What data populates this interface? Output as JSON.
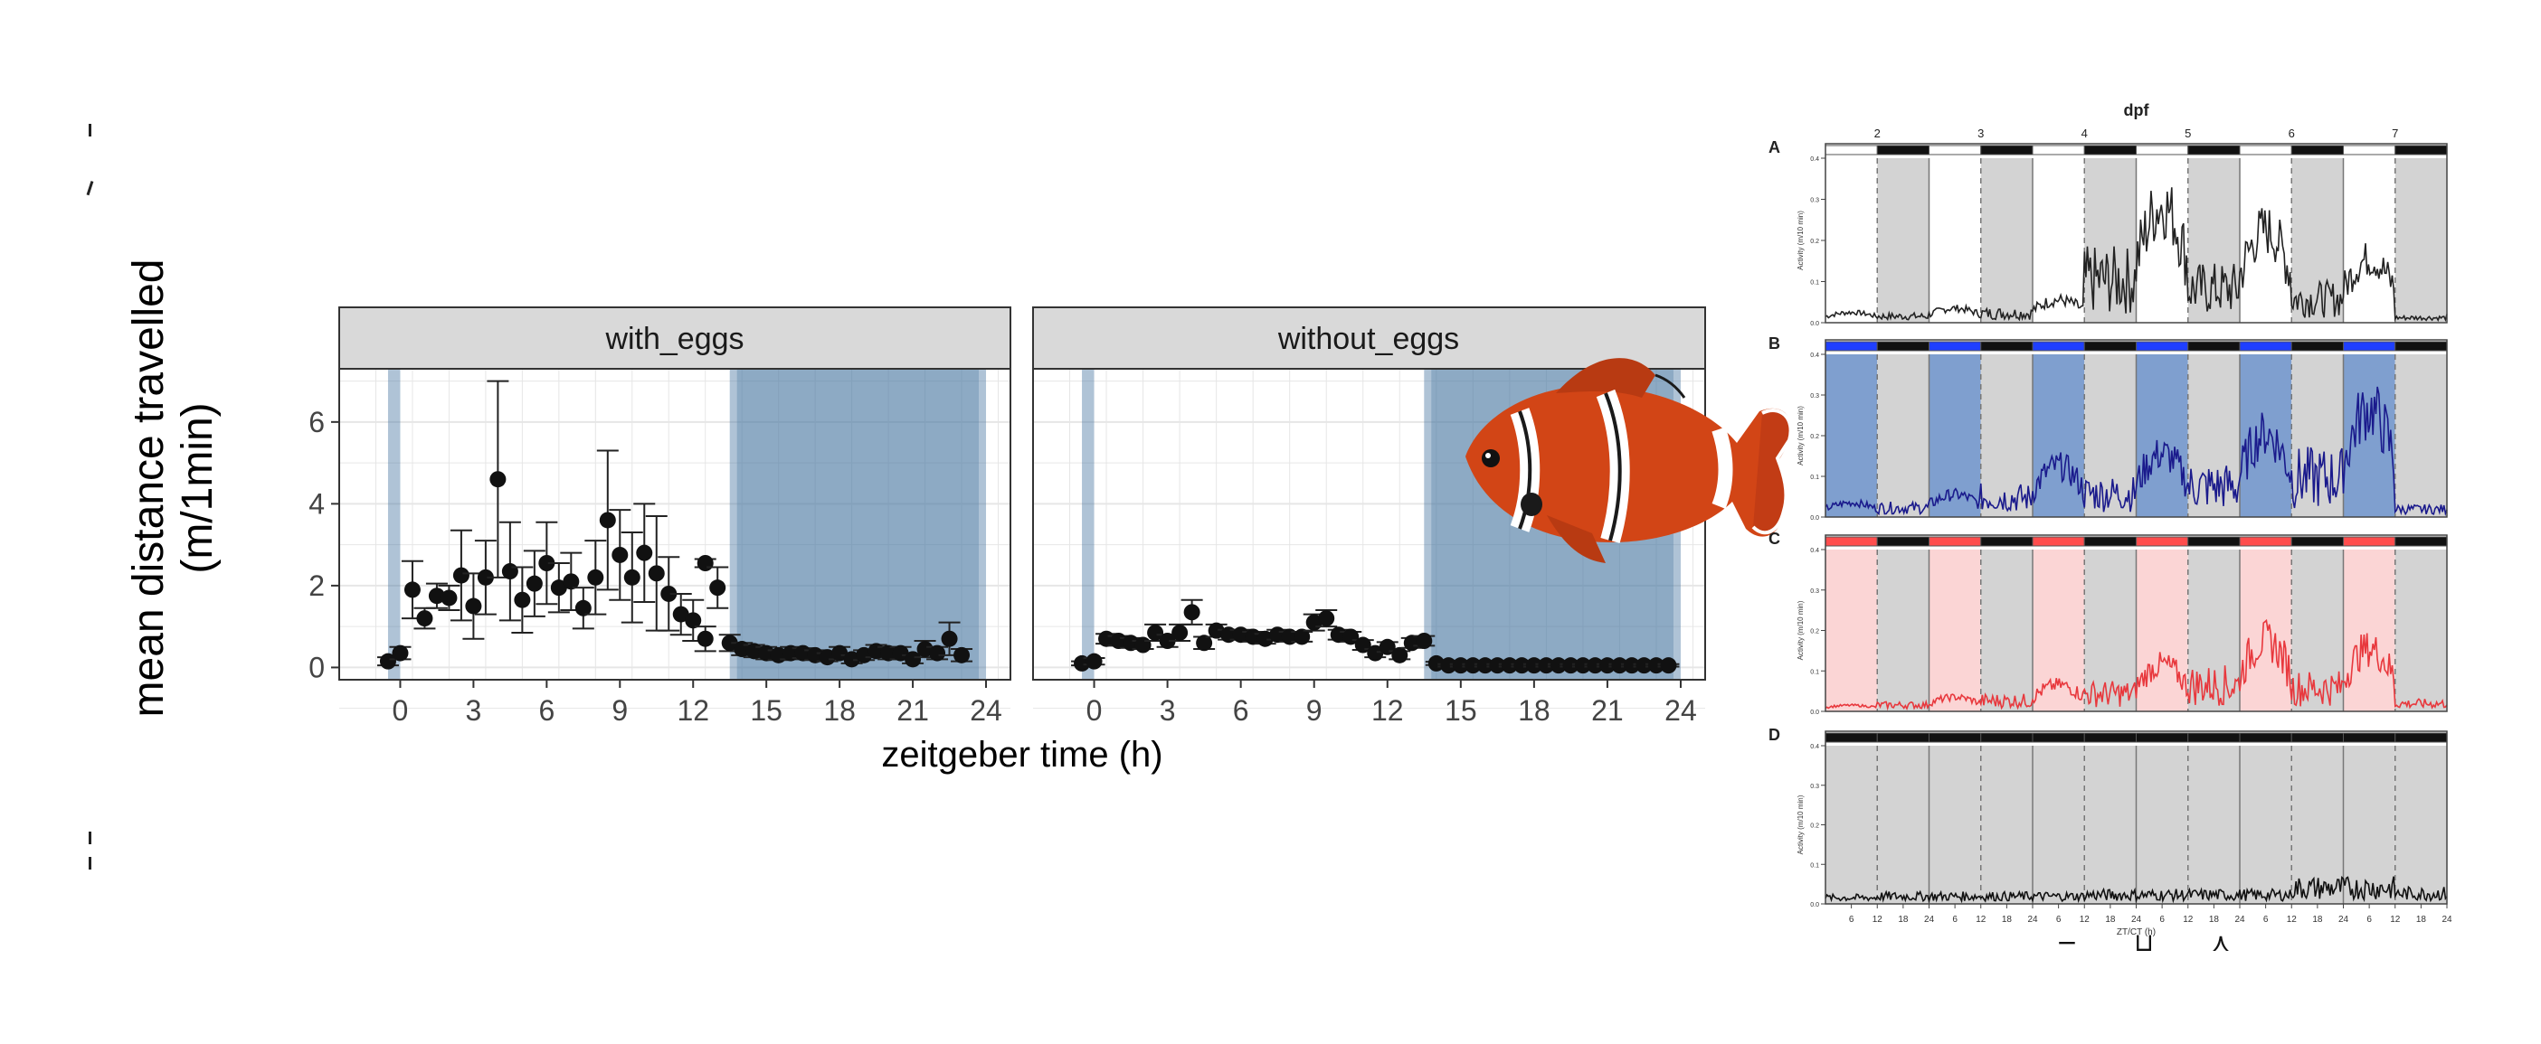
{
  "colors": {
    "panel_bg": "#ffffff",
    "grid": "#e6e6e6",
    "strip_bg": "#d9d9d9",
    "dark_shade": "#4d7aa3",
    "points": "#111111",
    "blue_trace": "#1a1a8c",
    "red_trace": "#e8383d",
    "black_trace": "#111111",
    "light_grey": "#d3d3d3",
    "blue_fill": "#7f9fcf",
    "red_fill": "#fbd5d5",
    "blue_bar": "#1f3fff",
    "red_bar": "#ff4d4d"
  },
  "left_axis_title_lines": [
    "mean distance travelled",
    "(m/1min)"
  ],
  "x_axis_title": "zeitgeber time (h)",
  "fish_icon": "clownfish-icon",
  "chart_data": [
    {
      "type": "scatter",
      "facets": [
        "with_eggs",
        "without_eggs"
      ],
      "xlabel": "zeitgeber time (h)",
      "ylabel": "mean distance travelled (m/1min)",
      "xlim": [
        -2.5,
        25
      ],
      "ylim": [
        -0.3,
        7.3
      ],
      "x_ticks": [
        0,
        3,
        6,
        9,
        12,
        15,
        18,
        21,
        24
      ],
      "y_ticks": [
        0,
        2,
        4,
        6
      ],
      "grid": true,
      "dark_periods": [
        [
          -0.5,
          0
        ],
        [
          13.5,
          24
        ]
      ],
      "series": [
        {
          "facet": "with_eggs",
          "points": [
            {
              "x": -0.5,
              "y": 0.15,
              "err": 0.1
            },
            {
              "x": 0,
              "y": 0.35,
              "err": 0.15
            },
            {
              "x": 0.5,
              "y": 1.9,
              "err": 0.7
            },
            {
              "x": 1,
              "y": 1.2,
              "err": 0.25
            },
            {
              "x": 1.5,
              "y": 1.75,
              "err": 0.3
            },
            {
              "x": 2,
              "y": 1.7,
              "err": 0.3
            },
            {
              "x": 2.5,
              "y": 2.25,
              "err": 1.1
            },
            {
              "x": 3,
              "y": 1.5,
              "err": 0.8
            },
            {
              "x": 3.5,
              "y": 2.2,
              "err": 0.9
            },
            {
              "x": 4,
              "y": 4.6,
              "err": 2.4
            },
            {
              "x": 4.5,
              "y": 2.35,
              "err": 1.2
            },
            {
              "x": 5,
              "y": 1.65,
              "err": 0.8
            },
            {
              "x": 5.5,
              "y": 2.05,
              "err": 0.8
            },
            {
              "x": 6,
              "y": 2.55,
              "err": 1.0
            },
            {
              "x": 6.5,
              "y": 1.95,
              "err": 0.6
            },
            {
              "x": 7,
              "y": 2.1,
              "err": 0.7
            },
            {
              "x": 7.5,
              "y": 1.45,
              "err": 0.5
            },
            {
              "x": 8,
              "y": 2.2,
              "err": 0.9
            },
            {
              "x": 8.5,
              "y": 3.6,
              "err": 1.7
            },
            {
              "x": 9,
              "y": 2.75,
              "err": 1.1
            },
            {
              "x": 9.5,
              "y": 2.2,
              "err": 1.1
            },
            {
              "x": 10,
              "y": 2.8,
              "err": 1.2
            },
            {
              "x": 10.5,
              "y": 2.3,
              "err": 1.4
            },
            {
              "x": 11,
              "y": 1.8,
              "err": 0.9
            },
            {
              "x": 11.5,
              "y": 1.3,
              "err": 0.5
            },
            {
              "x": 12,
              "y": 1.15,
              "err": 0.5
            },
            {
              "x": 12.5,
              "y": 0.7,
              "err": 0.3
            },
            {
              "x": 12.5,
              "y": 2.55,
              "err": 0.1
            },
            {
              "x": 13,
              "y": 1.95,
              "err": 0.5
            },
            {
              "x": 13.5,
              "y": 0.6,
              "err": 0.2
            },
            {
              "x": 14,
              "y": 0.45,
              "err": 0.15
            },
            {
              "x": 14.5,
              "y": 0.4,
              "err": 0.15
            },
            {
              "x": 15,
              "y": 0.35,
              "err": 0.15
            },
            {
              "x": 15.5,
              "y": 0.3,
              "err": 0.12
            },
            {
              "x": 16,
              "y": 0.35,
              "err": 0.15
            },
            {
              "x": 16.5,
              "y": 0.35,
              "err": 0.12
            },
            {
              "x": 17,
              "y": 0.3,
              "err": 0.12
            },
            {
              "x": 17.5,
              "y": 0.25,
              "err": 0.1
            },
            {
              "x": 18,
              "y": 0.35,
              "err": 0.15
            },
            {
              "x": 18.5,
              "y": 0.2,
              "err": 0.1
            },
            {
              "x": 19,
              "y": 0.3,
              "err": 0.12
            },
            {
              "x": 19.5,
              "y": 0.4,
              "err": 0.15
            },
            {
              "x": 20,
              "y": 0.35,
              "err": 0.15
            },
            {
              "x": 20.5,
              "y": 0.35,
              "err": 0.15
            },
            {
              "x": 21,
              "y": 0.2,
              "err": 0.1
            },
            {
              "x": 21.5,
              "y": 0.45,
              "err": 0.2
            },
            {
              "x": 22,
              "y": 0.35,
              "err": 0.15
            },
            {
              "x": 22.5,
              "y": 0.7,
              "err": 0.4
            },
            {
              "x": 23,
              "y": 0.3,
              "err": 0.15
            }
          ]
        },
        {
          "facet": "without_eggs",
          "points": [
            {
              "x": -0.5,
              "y": 0.1,
              "err": 0.05
            },
            {
              "x": 0,
              "y": 0.15,
              "err": 0.08
            },
            {
              "x": 0.5,
              "y": 0.7,
              "err": 0.12
            },
            {
              "x": 1,
              "y": 0.65,
              "err": 0.12
            },
            {
              "x": 1.5,
              "y": 0.6,
              "err": 0.12
            },
            {
              "x": 2,
              "y": 0.55,
              "err": 0.1
            },
            {
              "x": 2.5,
              "y": 0.85,
              "err": 0.2
            },
            {
              "x": 3,
              "y": 0.65,
              "err": 0.15
            },
            {
              "x": 3.5,
              "y": 0.85,
              "err": 0.2
            },
            {
              "x": 4,
              "y": 1.35,
              "err": 0.3
            },
            {
              "x": 4.5,
              "y": 0.6,
              "err": 0.15
            },
            {
              "x": 5,
              "y": 0.9,
              "err": 0.15
            },
            {
              "x": 5.5,
              "y": 0.8,
              "err": 0.12
            },
            {
              "x": 6,
              "y": 0.8,
              "err": 0.12
            },
            {
              "x": 6.5,
              "y": 0.75,
              "err": 0.12
            },
            {
              "x": 7,
              "y": 0.7,
              "err": 0.12
            },
            {
              "x": 7.5,
              "y": 0.8,
              "err": 0.12
            },
            {
              "x": 8,
              "y": 0.75,
              "err": 0.12
            },
            {
              "x": 8.5,
              "y": 0.75,
              "err": 0.12
            },
            {
              "x": 9,
              "y": 1.1,
              "err": 0.2
            },
            {
              "x": 9.5,
              "y": 1.2,
              "err": 0.2
            },
            {
              "x": 10,
              "y": 0.8,
              "err": 0.12
            },
            {
              "x": 10.5,
              "y": 0.75,
              "err": 0.12
            },
            {
              "x": 11,
              "y": 0.55,
              "err": 0.12
            },
            {
              "x": 11.5,
              "y": 0.35,
              "err": 0.1
            },
            {
              "x": 12,
              "y": 0.5,
              "err": 0.12
            },
            {
              "x": 12.5,
              "y": 0.3,
              "err": 0.1
            },
            {
              "x": 13,
              "y": 0.6,
              "err": 0.12
            },
            {
              "x": 13.5,
              "y": 0.65,
              "err": 0.12
            },
            {
              "x": 14,
              "y": 0.1,
              "err": 0.04
            },
            {
              "x": 14.5,
              "y": 0.05,
              "err": 0.03
            },
            {
              "x": 15,
              "y": 0.05,
              "err": 0.03
            },
            {
              "x": 15.5,
              "y": 0.05,
              "err": 0.03
            },
            {
              "x": 16,
              "y": 0.05,
              "err": 0.03
            },
            {
              "x": 16.5,
              "y": 0.05,
              "err": 0.03
            },
            {
              "x": 17,
              "y": 0.05,
              "err": 0.03
            },
            {
              "x": 17.5,
              "y": 0.05,
              "err": 0.03
            },
            {
              "x": 18,
              "y": 0.05,
              "err": 0.03
            },
            {
              "x": 18.5,
              "y": 0.05,
              "err": 0.03
            },
            {
              "x": 19,
              "y": 0.05,
              "err": 0.03
            },
            {
              "x": 19.5,
              "y": 0.05,
              "err": 0.03
            },
            {
              "x": 20,
              "y": 0.05,
              "err": 0.03
            },
            {
              "x": 20.5,
              "y": 0.05,
              "err": 0.03
            },
            {
              "x": 21,
              "y": 0.05,
              "err": 0.03
            },
            {
              "x": 21.5,
              "y": 0.05,
              "err": 0.03
            },
            {
              "x": 22,
              "y": 0.05,
              "err": 0.03
            },
            {
              "x": 22.5,
              "y": 0.05,
              "err": 0.03
            },
            {
              "x": 23,
              "y": 0.05,
              "err": 0.03
            },
            {
              "x": 23.5,
              "y": 0.05,
              "err": 0.03
            }
          ]
        }
      ]
    },
    {
      "type": "line",
      "title": "dpf",
      "dpf_labels": [
        "2",
        "3",
        "4",
        "5",
        "6",
        "7"
      ],
      "panels": [
        "A",
        "B",
        "C",
        "D"
      ],
      "ylabel": "Activity (m/10 min)",
      "y_ticks": [
        "0.0",
        "0.1",
        "0.2",
        "0.3",
        "0.4"
      ],
      "ylim": [
        0,
        0.4
      ],
      "xlabel": "ZT/CT (h)",
      "x_ticks": [
        "6",
        "12",
        "18",
        "24",
        "6",
        "12",
        "18",
        "24",
        "6",
        "12",
        "18",
        "24",
        "6",
        "12",
        "18",
        "24",
        "6",
        "12",
        "18",
        "24",
        "6",
        "12",
        "18",
        "24"
      ],
      "light_condition_colors": [
        "white",
        "blue",
        "red",
        "dark"
      ],
      "footer_marks": [
        "−",
        "⊔",
        "⋏"
      ]
    }
  ]
}
